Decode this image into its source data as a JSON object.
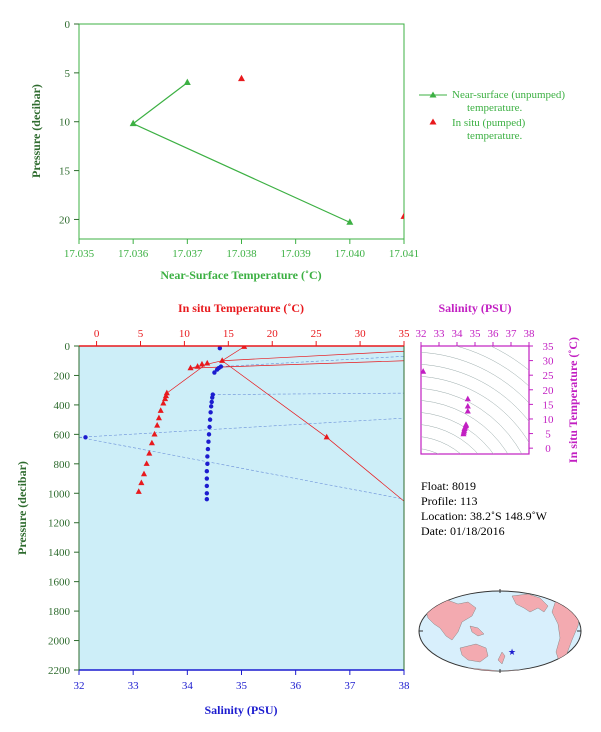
{
  "colors": {
    "green": "#3cb043",
    "red": "#e8191d",
    "blue": "#1c1ccf",
    "magenta": "#c21fc2",
    "darkgreen": "#2e6b2e",
    "plot_bg": "#cdeef8",
    "ocean": "#d8effc",
    "land": "#f3aab0"
  },
  "chart_data": [
    {
      "type": "line",
      "xlabel": "Near-Surface Temperature (˚C)",
      "ylabel": "Pressure (decibar)",
      "xlim": [
        17.035,
        17.041
      ],
      "ylim": [
        22,
        0
      ],
      "x_ticks": [
        "17.035",
        "17.036",
        "17.037",
        "17.038",
        "17.039",
        "17.040",
        "17.041"
      ],
      "y_ticks": [
        "0",
        "5",
        "10",
        "15",
        "20"
      ],
      "series": [
        {
          "name": "Near-surface (unpumped) temperature.",
          "marker": "triangle",
          "color": "green",
          "points": [
            [
              17.037,
              6.0
            ],
            [
              17.036,
              10.2
            ],
            [
              17.04,
              20.3
            ]
          ]
        },
        {
          "name": "In situ (pumped) temperature.",
          "marker": "triangle",
          "color": "red",
          "points": [
            [
              17.038,
              5.6
            ],
            [
              17.041,
              19.7
            ]
          ]
        }
      ]
    },
    {
      "type": "scatter",
      "xlabel": "Salinity (PSU)",
      "x2label": "In situ Temperature (˚C)",
      "ylabel": "Pressure (decibar)",
      "xlim": [
        32,
        38
      ],
      "x2lim": [
        -2,
        35
      ],
      "ylim": [
        2200,
        0
      ],
      "x_ticks": [
        "32",
        "33",
        "34",
        "35",
        "36",
        "37",
        "38"
      ],
      "x2_ticks": [
        "0",
        "5",
        "10",
        "15",
        "20",
        "25",
        "30",
        "35"
      ],
      "y_ticks": [
        "0",
        "200",
        "400",
        "600",
        "800",
        "1000",
        "1200",
        "1400",
        "1600",
        "1800",
        "2000",
        "2200"
      ],
      "temperature_series": {
        "name": "In situ Temperature",
        "color": "red",
        "points": [
          [
            16.8,
            5
          ],
          [
            14.3,
            100
          ],
          [
            10.7,
            150
          ],
          [
            11.5,
            140
          ],
          [
            12.0,
            125
          ],
          [
            12.6,
            118
          ],
          [
            8.0,
            320
          ],
          [
            7.9,
            340
          ],
          [
            7.8,
            360
          ],
          [
            7.6,
            390
          ],
          [
            7.3,
            440
          ],
          [
            7.1,
            490
          ],
          [
            6.9,
            540
          ],
          [
            6.6,
            600
          ],
          [
            6.3,
            660
          ],
          [
            6.0,
            730
          ],
          [
            5.7,
            800
          ],
          [
            5.4,
            870
          ],
          [
            5.1,
            930
          ],
          [
            4.8,
            990
          ],
          [
            26.2,
            620
          ]
        ]
      },
      "salinity_series": {
        "name": "Salinity",
        "color": "blue",
        "points": [
          [
            34.6,
            15
          ],
          [
            34.62,
            140
          ],
          [
            34.58,
            150
          ],
          [
            34.55,
            160
          ],
          [
            34.5,
            180
          ],
          [
            34.47,
            330
          ],
          [
            34.46,
            350
          ],
          [
            34.45,
            380
          ],
          [
            34.44,
            410
          ],
          [
            34.43,
            450
          ],
          [
            34.42,
            500
          ],
          [
            34.41,
            550
          ],
          [
            34.4,
            600
          ],
          [
            34.39,
            650
          ],
          [
            34.38,
            700
          ],
          [
            34.37,
            750
          ],
          [
            34.37,
            800
          ],
          [
            34.36,
            850
          ],
          [
            34.36,
            900
          ],
          [
            34.36,
            950
          ],
          [
            34.36,
            1000
          ],
          [
            34.36,
            1040
          ],
          [
            32.12,
            620
          ]
        ]
      }
    },
    {
      "type": "scatter",
      "title": "Salinity (PSU)",
      "ylabel": "In situ Temperature (˚C)",
      "xlim": [
        32,
        38
      ],
      "ylim": [
        -2,
        35
      ],
      "x_ticks": [
        "32",
        "33",
        "34",
        "35",
        "36",
        "37",
        "38"
      ],
      "y_ticks": [
        "0",
        "5",
        "10",
        "15",
        "20",
        "25",
        "30",
        "35"
      ],
      "points": [
        [
          34.6,
          16.8
        ],
        [
          34.6,
          14.3
        ],
        [
          34.6,
          12.6
        ],
        [
          34.5,
          8.0
        ],
        [
          34.5,
          7.6
        ],
        [
          34.45,
          7.1
        ],
        [
          34.42,
          6.6
        ],
        [
          34.4,
          6.0
        ],
        [
          34.38,
          5.4
        ],
        [
          34.36,
          4.8
        ],
        [
          32.12,
          26.2
        ]
      ]
    }
  ],
  "float_info": {
    "float": "Float:  8019",
    "profile": "Profile:  113",
    "location": "Location:  38.2˚S  148.9˚W",
    "date": "Date:  01/18/2016"
  },
  "map": {
    "marker_icon": "star-icon"
  }
}
